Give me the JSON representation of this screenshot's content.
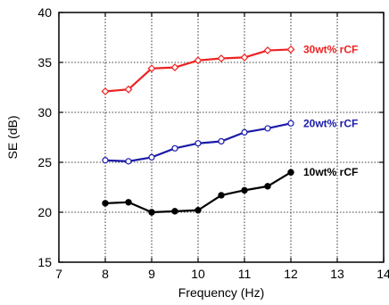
{
  "chart_data": {
    "type": "line",
    "title": "",
    "xlabel": "Frequency (Hz)",
    "ylabel": "SE (dB)",
    "xlim": [
      7,
      14
    ],
    "ylim": [
      15,
      40
    ],
    "xticks": [
      7,
      8,
      9,
      10,
      11,
      12,
      13,
      14
    ],
    "yticks": [
      15,
      20,
      25,
      30,
      35,
      40
    ],
    "grid": true,
    "legend": "inline labels at right end of each series",
    "x": [
      8,
      8.5,
      9,
      9.5,
      10,
      10.5,
      11,
      11.5,
      12
    ],
    "series": [
      {
        "name": "30wt% rCF",
        "color": "#ee2222",
        "marker": "open-diamond",
        "values": [
          32.1,
          32.3,
          34.4,
          34.5,
          35.2,
          35.4,
          35.5,
          36.2,
          36.3
        ]
      },
      {
        "name": "20wt% rCF",
        "color": "#1a1aaa",
        "marker": "open-circle",
        "values": [
          25.2,
          25.1,
          25.5,
          26.4,
          26.9,
          27.1,
          28.0,
          28.4,
          28.9
        ]
      },
      {
        "name": "10wt% rCF",
        "color": "#000000",
        "marker": "filled-circle",
        "values": [
          20.9,
          21.0,
          20.0,
          20.1,
          20.2,
          21.7,
          22.2,
          22.6,
          24.0
        ]
      }
    ]
  }
}
